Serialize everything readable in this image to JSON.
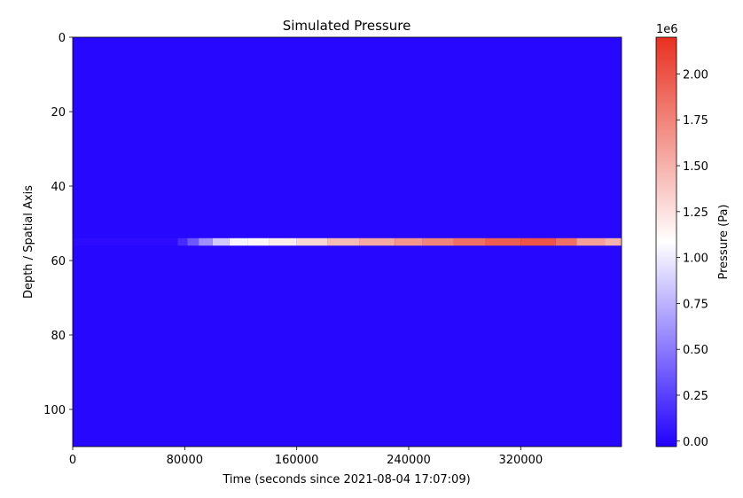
{
  "chart_data": {
    "type": "heatmap",
    "title": "Simulated Pressure",
    "xlabel": "Time (seconds since 2021-08-04 17:07:09)",
    "ylabel": "Depth / Spatial Axis",
    "xlim": [
      0,
      392000
    ],
    "ylim": [
      110,
      0
    ],
    "x_ticks": [
      0,
      80000,
      160000,
      240000,
      320000
    ],
    "x_tick_labels": [
      "0",
      "80000",
      "160000",
      "240000",
      "320000"
    ],
    "y_ticks": [
      0,
      20,
      40,
      60,
      80,
      100
    ],
    "y_tick_labels": [
      "0",
      "20",
      "40",
      "60",
      "80",
      "100"
    ],
    "background_value": 0,
    "colorbar": {
      "label": "Pressure (Pa)",
      "offset_text": "1e6",
      "range": [
        -0.03,
        2.2
      ],
      "ticks": [
        0.0,
        0.25,
        0.5,
        0.75,
        1.0,
        1.25,
        1.5,
        1.75,
        2.0
      ],
      "tick_labels": [
        "0.00",
        "0.25",
        "0.50",
        "0.75",
        "1.00",
        "1.25",
        "1.50",
        "1.75",
        "2.00"
      ],
      "colormap": "bwr",
      "colors": {
        "low": "#2200ff",
        "mid": "#ffffff",
        "high": "#e83020"
      }
    },
    "plume": {
      "depth_rows": [
        54,
        55
      ],
      "segments": [
        {
          "x_start": 0,
          "x_end": 75000,
          "value": 0.02
        },
        {
          "x_start": 75000,
          "x_end": 82000,
          "value": 0.15
        },
        {
          "x_start": 82000,
          "x_end": 90000,
          "value": 0.35
        },
        {
          "x_start": 90000,
          "x_end": 100000,
          "value": 0.6
        },
        {
          "x_start": 100000,
          "x_end": 112000,
          "value": 0.85
        },
        {
          "x_start": 112000,
          "x_end": 125000,
          "value": 1.05
        },
        {
          "x_start": 125000,
          "x_end": 140000,
          "value": 1.12
        },
        {
          "x_start": 140000,
          "x_end": 160000,
          "value": 1.18
        },
        {
          "x_start": 160000,
          "x_end": 182000,
          "value": 1.3
        },
        {
          "x_start": 182000,
          "x_end": 205000,
          "value": 1.45
        },
        {
          "x_start": 205000,
          "x_end": 230000,
          "value": 1.55
        },
        {
          "x_start": 230000,
          "x_end": 250000,
          "value": 1.65
        },
        {
          "x_start": 250000,
          "x_end": 272000,
          "value": 1.75
        },
        {
          "x_start": 272000,
          "x_end": 295000,
          "value": 1.85
        },
        {
          "x_start": 295000,
          "x_end": 320000,
          "value": 1.95
        },
        {
          "x_start": 320000,
          "x_end": 345000,
          "value": 2.0
        },
        {
          "x_start": 345000,
          "x_end": 360000,
          "value": 1.85
        },
        {
          "x_start": 360000,
          "x_end": 380000,
          "value": 1.6
        },
        {
          "x_start": 380000,
          "x_end": 392000,
          "value": 1.5
        }
      ]
    }
  }
}
